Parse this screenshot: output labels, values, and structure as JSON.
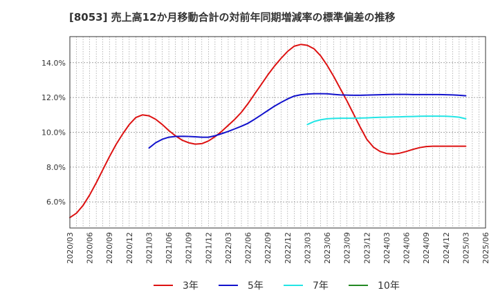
{
  "chart_data": {
    "type": "line",
    "title": "[8053]  売上高12か月移動合計の対前年同期増減率の標準偏差の推移",
    "x_tick_labels": [
      "2020/03",
      "2020/06",
      "2020/09",
      "2020/12",
      "2021/03",
      "2021/06",
      "2021/09",
      "2021/12",
      "2022/03",
      "2022/06",
      "2022/09",
      "2022/12",
      "2023/03",
      "2023/06",
      "2023/09",
      "2023/12",
      "2024/03",
      "2024/06",
      "2024/09",
      "2024/12",
      "2025/03",
      "2025/06"
    ],
    "y_ticks": [
      6.0,
      8.0,
      10.0,
      12.0,
      14.0
    ],
    "y_tick_labels": [
      "6.0%",
      "8.0%",
      "10.0%",
      "12.0%",
      "14.0%"
    ],
    "ylim": [
      4.5,
      15.5
    ],
    "grid": true,
    "legend_position": "bottom",
    "series": [
      {
        "name": "3年",
        "color": "#dd1111",
        "x": [
          "2020/03",
          "2020/04",
          "2020/05",
          "2020/06",
          "2020/07",
          "2020/08",
          "2020/09",
          "2020/10",
          "2020/11",
          "2020/12",
          "2021/01",
          "2021/02",
          "2021/03",
          "2021/04",
          "2021/05",
          "2021/06",
          "2021/07",
          "2021/08",
          "2021/09",
          "2021/10",
          "2021/11",
          "2021/12",
          "2022/01",
          "2022/02",
          "2022/03",
          "2022/04",
          "2022/05",
          "2022/06",
          "2022/07",
          "2022/08",
          "2022/09",
          "2022/10",
          "2022/11",
          "2022/12",
          "2023/01",
          "2023/02",
          "2023/03",
          "2023/04",
          "2023/05",
          "2023/06",
          "2023/07",
          "2023/08",
          "2023/09",
          "2023/10",
          "2023/11",
          "2023/12",
          "2024/01",
          "2024/02",
          "2024/03",
          "2024/04",
          "2024/05",
          "2024/06",
          "2024/07",
          "2024/08",
          "2024/09",
          "2024/10",
          "2024/11",
          "2024/12",
          "2025/01",
          "2025/02",
          "2025/03"
        ],
        "values": [
          5.1,
          5.35,
          5.8,
          6.4,
          7.1,
          7.85,
          8.6,
          9.3,
          9.9,
          10.45,
          10.85,
          11.0,
          10.95,
          10.75,
          10.45,
          10.1,
          9.8,
          9.55,
          9.4,
          9.32,
          9.35,
          9.5,
          9.75,
          10.05,
          10.4,
          10.75,
          11.15,
          11.65,
          12.2,
          12.75,
          13.3,
          13.8,
          14.25,
          14.65,
          14.95,
          15.05,
          15.0,
          14.8,
          14.4,
          13.85,
          13.2,
          12.5,
          11.8,
          11.05,
          10.3,
          9.6,
          9.15,
          8.9,
          8.78,
          8.75,
          8.8,
          8.9,
          9.02,
          9.12,
          9.18,
          9.2,
          9.2,
          9.2,
          9.2,
          9.2,
          9.2
        ]
      },
      {
        "name": "5年",
        "color": "#1111cc",
        "x": [
          "2021/03",
          "2021/04",
          "2021/05",
          "2021/06",
          "2021/07",
          "2021/08",
          "2021/09",
          "2021/10",
          "2021/11",
          "2021/12",
          "2022/01",
          "2022/02",
          "2022/03",
          "2022/04",
          "2022/05",
          "2022/06",
          "2022/07",
          "2022/08",
          "2022/09",
          "2022/10",
          "2022/11",
          "2022/12",
          "2023/01",
          "2023/02",
          "2023/03",
          "2023/04",
          "2023/05",
          "2023/06",
          "2023/07",
          "2023/08",
          "2023/09",
          "2023/10",
          "2023/11",
          "2023/12",
          "2024/01",
          "2024/02",
          "2024/03",
          "2024/04",
          "2024/05",
          "2024/06",
          "2024/07",
          "2024/08",
          "2024/09",
          "2024/10",
          "2024/11",
          "2024/12",
          "2025/01",
          "2025/02",
          "2025/03"
        ],
        "values": [
          9.1,
          9.4,
          9.6,
          9.72,
          9.76,
          9.77,
          9.76,
          9.74,
          9.72,
          9.72,
          9.8,
          9.92,
          10.05,
          10.2,
          10.35,
          10.52,
          10.75,
          11.0,
          11.25,
          11.5,
          11.72,
          11.92,
          12.08,
          12.16,
          12.2,
          12.22,
          12.22,
          12.21,
          12.18,
          12.15,
          12.14,
          12.13,
          12.13,
          12.14,
          12.15,
          12.16,
          12.17,
          12.18,
          12.18,
          12.18,
          12.17,
          12.17,
          12.17,
          12.17,
          12.17,
          12.16,
          12.15,
          12.13,
          12.1
        ]
      },
      {
        "name": "7年",
        "color": "#22e5e5",
        "x": [
          "2023/03",
          "2023/04",
          "2023/05",
          "2023/06",
          "2023/07",
          "2023/08",
          "2023/09",
          "2023/10",
          "2023/11",
          "2023/12",
          "2024/01",
          "2024/02",
          "2024/03",
          "2024/04",
          "2024/05",
          "2024/06",
          "2024/07",
          "2024/08",
          "2024/09",
          "2024/10",
          "2024/11",
          "2024/12",
          "2025/01",
          "2025/02",
          "2025/03"
        ],
        "values": [
          10.45,
          10.62,
          10.72,
          10.78,
          10.8,
          10.81,
          10.81,
          10.81,
          10.82,
          10.83,
          10.85,
          10.86,
          10.87,
          10.88,
          10.89,
          10.9,
          10.91,
          10.92,
          10.93,
          10.93,
          10.93,
          10.92,
          10.9,
          10.87,
          10.78
        ]
      },
      {
        "name": "10年",
        "color": "#228822",
        "x": [],
        "values": []
      }
    ]
  }
}
